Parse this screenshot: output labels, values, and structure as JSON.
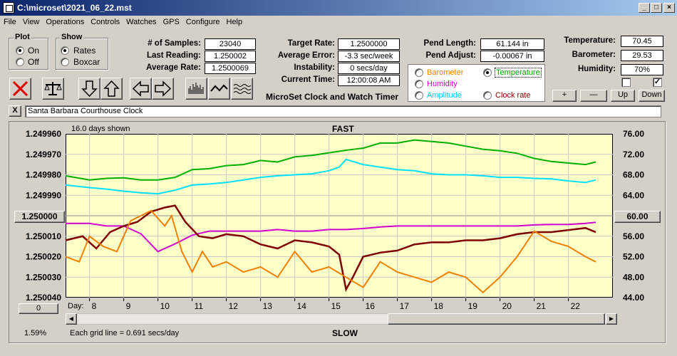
{
  "window": {
    "title": "C:\\microset\\2021_06_22.mst"
  },
  "menu": [
    "File",
    "View",
    "Operations",
    "Controls",
    "Watches",
    "GPS",
    "Configure",
    "Help"
  ],
  "plot_group": {
    "title": "Plot",
    "on": "On",
    "off": "Off",
    "selected": "On"
  },
  "show_group": {
    "title": "Show",
    "rates": "Rates",
    "boxcar": "Boxcar",
    "selected": "Rates"
  },
  "stats": {
    "samples_label": "# of Samples:",
    "samples": "23040",
    "last_label": "Last Reading:",
    "last": "1.250002",
    "avgrate_label": "Average Rate:",
    "avgrate": "1.2500069",
    "target_label": "Target Rate:",
    "target": "1.2500000",
    "avgerr_label": "Average Error:",
    "avgerr": "-3.3 sec/week",
    "instab_label": "Instability:",
    "instab": "0 secs/day",
    "time_label": "Current Time:",
    "time": "12:00:08 AM",
    "pendlen_label": "Pend Length:",
    "pendlen": "61.144 in",
    "pendadj_label": "Pend Adjust:",
    "pendadj": "-0.00067 in",
    "temp_label": "Temperature:",
    "temp": "70.45",
    "baro_label": "Barometer:",
    "baro": "29.53",
    "hum_label": "Humidity:",
    "hum": "70%"
  },
  "app_heading": "MicroSet Clock and Watch Timer",
  "sensor_options": {
    "barometer": "Barometer",
    "temperature": "Temperature",
    "humidity": "Humidity",
    "amplitude": "Amplitude",
    "clock_rate": "Clock rate",
    "selected": "Temperature"
  },
  "sensor_buttons": {
    "plus": "+",
    "minus": "—",
    "up": "Up",
    "down": "Down"
  },
  "comment": "Santa Barbara Courthouse Clock",
  "close_x": "X",
  "chart_header": {
    "days_shown": "16.0 days shown",
    "fast": "FAST",
    "slow": "SLOW",
    "grid_note": "Each grid line = 0.691 secs/day",
    "day_label": "Day:",
    "percent": "1.59%"
  },
  "center_left_btn": "1.250000",
  "center_right_btn": "60.00",
  "bottom_left_btn": "0",
  "colors": {
    "temperature": "#00b000",
    "humidity": "#d000d0",
    "amplitude": "#00e0ff",
    "rate": "#800000",
    "barometer": "#f08000"
  },
  "chart_data": {
    "type": "line",
    "xlabel": "Day:",
    "x_ticks": [
      8,
      9,
      10,
      11,
      12,
      13,
      14,
      15,
      16,
      17,
      18,
      19,
      20,
      21,
      22
    ],
    "xlim": [
      7.3,
      23.3
    ],
    "y_left_ticks": [
      "1.249960",
      "1.249970",
      "1.249980",
      "1.249990",
      "1.250000",
      "1.250010",
      "1.250020",
      "1.250030",
      "1.250040"
    ],
    "y_left_lim": [
      1.24996,
      1.25004
    ],
    "y_right_ticks": [
      "76.00",
      "72.00",
      "68.00",
      "64.00",
      "60.00",
      "56.00",
      "52.00",
      "48.00",
      "44.00"
    ],
    "y_right_lim": [
      76,
      44
    ],
    "series": [
      {
        "name": "Temperature",
        "axis": "right",
        "x": [
          7.3,
          8,
          8.5,
          9,
          9.5,
          10,
          10.5,
          11,
          11.5,
          12,
          12.5,
          13,
          13.5,
          14,
          14.5,
          15,
          15.5,
          16,
          16.5,
          17,
          17.5,
          18,
          18.5,
          19,
          19.5,
          20,
          20.5,
          21,
          21.5,
          22,
          22.5,
          22.8
        ],
        "values": [
          67.8,
          67,
          67.3,
          67.4,
          67,
          67,
          67.5,
          69,
          69.2,
          69.8,
          70,
          70.8,
          70.5,
          71.5,
          71.8,
          72.3,
          72.8,
          73.2,
          74.2,
          74.2,
          74.8,
          74.5,
          74.2,
          73.6,
          73,
          72.7,
          72.2,
          71.2,
          70.6,
          70.3,
          70,
          70.5
        ]
      },
      {
        "name": "Humidity",
        "axis": "right",
        "x": [
          7.3,
          8,
          8.5,
          9,
          9.5,
          10,
          10.5,
          11,
          11.5,
          12,
          12.5,
          13,
          13.5,
          14,
          14.5,
          15,
          15.5,
          16,
          16.5,
          17,
          17.5,
          18,
          18.5,
          19,
          19.5,
          20,
          20.5,
          21,
          21.5,
          22,
          22.5,
          22.8
        ],
        "values": [
          58.5,
          58.5,
          58,
          58,
          56.5,
          53,
          54.5,
          56.2,
          57,
          57,
          57,
          57,
          57.3,
          57,
          57,
          57.3,
          57.3,
          57.5,
          57.8,
          58,
          58,
          58,
          58,
          58,
          58,
          58,
          58,
          58.2,
          58.3,
          58.3,
          58.5,
          58.7
        ]
      },
      {
        "name": "Amplitude",
        "axis": "right",
        "x": [
          7.3,
          8,
          8.5,
          9,
          9.5,
          10,
          10.5,
          11,
          11.5,
          12,
          12.5,
          13,
          13.5,
          14,
          14.5,
          15,
          15.3,
          15.5,
          16,
          16.5,
          17,
          17.5,
          18,
          18.5,
          19,
          19.5,
          20,
          20.5,
          21,
          21.5,
          22,
          22.5,
          22.8
        ],
        "values": [
          66,
          65.5,
          65.2,
          64.8,
          64.5,
          64.3,
          65,
          66,
          66.2,
          66.5,
          67,
          67.5,
          67.8,
          68,
          68.2,
          68.8,
          69.5,
          71,
          70,
          69.5,
          69,
          68.8,
          68.2,
          68,
          68,
          67.8,
          67.5,
          67.5,
          67.3,
          67.2,
          66.8,
          66.5,
          67
        ]
      },
      {
        "name": "Rate",
        "axis": "left",
        "x": [
          7.3,
          7.8,
          8.2,
          8.6,
          9,
          9.4,
          9.8,
          10.2,
          10.5,
          10.8,
          11.2,
          11.6,
          12,
          12.5,
          13,
          13.5,
          14,
          14.5,
          15,
          15.3,
          15.5,
          15.7,
          16,
          16.5,
          17,
          17.5,
          18,
          18.5,
          19,
          19.5,
          20,
          20.5,
          21,
          21.5,
          22,
          22.5,
          22.8
        ],
        "values": [
          1.250012,
          1.25001,
          1.250016,
          1.250008,
          1.250005,
          1.250003,
          1.249998,
          1.249996,
          1.249995,
          1.250003,
          1.25001,
          1.250011,
          1.250009,
          1.25001,
          1.250014,
          1.250016,
          1.250012,
          1.250013,
          1.250015,
          1.250019,
          1.250036,
          1.25003,
          1.25002,
          1.250018,
          1.250017,
          1.250014,
          1.250013,
          1.250013,
          1.250012,
          1.250012,
          1.250011,
          1.250009,
          1.250008,
          1.250008,
          1.250007,
          1.250006,
          1.250008
        ]
      },
      {
        "name": "Barometer",
        "axis": "right",
        "x": [
          7.3,
          7.7,
          8,
          8.4,
          8.8,
          9.2,
          9.5,
          9.8,
          10.2,
          10.4,
          10.7,
          11,
          11.3,
          11.6,
          12,
          12.5,
          13,
          13.5,
          14,
          14.5,
          15,
          15.5,
          16,
          16.5,
          17,
          17.5,
          18,
          18.5,
          19,
          19.5,
          20,
          20.5,
          21,
          21.5,
          22,
          22.5,
          22.8
        ],
        "values": [
          52,
          51,
          56,
          54,
          53,
          59,
          60,
          61,
          58,
          60,
          53,
          49,
          53,
          50,
          51,
          49,
          50,
          48,
          53,
          49,
          50,
          48,
          46,
          51,
          49,
          48,
          47,
          49,
          48,
          45,
          48,
          52,
          57,
          55,
          54,
          52,
          51
        ]
      }
    ]
  }
}
